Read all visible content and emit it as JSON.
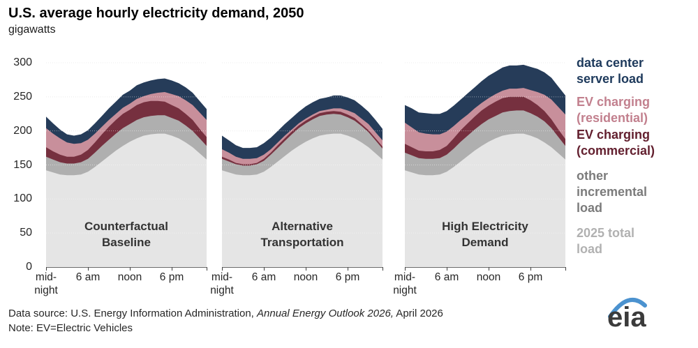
{
  "title": "U.S. average hourly electricity demand, 2050",
  "subtitle": "gigawatts",
  "footer": {
    "source_prefix": "Data source: U.S. Energy Information Administration, ",
    "source_italic": "Annual Energy Outlook 2026,",
    "source_suffix": " April 2026",
    "note": "Note: EV=Electric Vehicles"
  },
  "logo": {
    "text": "eia",
    "swoosh_color": "#4b92cf"
  },
  "chart_data": {
    "type": "area",
    "stacked": true,
    "title": "U.S. average hourly electricity demand, 2050",
    "ylabel": "gigawatts",
    "ylim": [
      0,
      300
    ],
    "y_ticks": [
      0,
      50,
      100,
      150,
      200,
      250,
      300
    ],
    "grid": "dotted horizontal",
    "legend_position": "right",
    "hours": [
      0,
      1,
      2,
      3,
      4,
      5,
      6,
      7,
      8,
      9,
      10,
      11,
      12,
      13,
      14,
      15,
      16,
      17,
      18,
      19,
      20,
      21,
      22,
      23
    ],
    "x_tick_labels": [
      {
        "hour": 0,
        "label": "mid-\nnight"
      },
      {
        "hour": 6,
        "label": "6 am"
      },
      {
        "hour": 12,
        "label": "noon"
      },
      {
        "hour": 18,
        "label": "6 pm"
      }
    ],
    "series_order": [
      "total_2025",
      "other_incremental",
      "ev_commercial",
      "ev_residential",
      "data_center"
    ],
    "colors": {
      "total_2025": "#e5e5e5",
      "other_incremental": "#afafaf",
      "ev_commercial": "#76303f",
      "ev_residential": "#c88f9b",
      "data_center": "#263c59"
    },
    "legend": [
      {
        "series": "data_center",
        "label": "data center\nserver load",
        "color": "#1e3a5c"
      },
      {
        "series": "ev_residential",
        "label": "EV charging\n(residential)",
        "color": "#c2808e"
      },
      {
        "series": "ev_commercial",
        "label": "EV charging\n(commercial)",
        "color": "#63202f"
      },
      {
        "series": "other_incremental",
        "label": "other\nincremental\nload",
        "color": "#7b7b7b"
      },
      {
        "series": "total_2025",
        "label": "2025 total\nload",
        "color": "#b1b1b1"
      }
    ],
    "panels": [
      {
        "label": "Counterfactual\nBaseline",
        "series": {
          "total_2025": [
            142,
            139,
            136,
            135,
            135,
            136,
            140,
            147,
            155,
            163,
            171,
            178,
            184,
            189,
            193,
            195,
            196,
            196,
            193,
            189,
            183,
            176,
            167,
            158
          ],
          "other_incremental": [
            20,
            19,
            18,
            17,
            17,
            18,
            19,
            21,
            23,
            24,
            25,
            26,
            26,
            27,
            27,
            27,
            27,
            27,
            26,
            26,
            25,
            24,
            22,
            20
          ],
          "ev_commercial": [
            14,
            12,
            11,
            10,
            10,
            11,
            13,
            15,
            17,
            19,
            20,
            21,
            21,
            22,
            22,
            22,
            21,
            20,
            19,
            18,
            17,
            16,
            14,
            13
          ],
          "ev_residential": [
            28,
            26,
            24,
            21,
            19,
            17,
            15,
            13,
            11,
            10,
            9,
            9,
            9,
            9,
            9,
            10,
            12,
            14,
            16,
            18,
            20,
            22,
            24,
            25
          ],
          "data_center": [
            17,
            15,
            13,
            12,
            12,
            13,
            14,
            15,
            16,
            17,
            18,
            19,
            19,
            20,
            20,
            20,
            20,
            20,
            20,
            19,
            19,
            18,
            17,
            16
          ]
        }
      },
      {
        "label": "Alternative\nTransportation",
        "series": {
          "total_2025": [
            142,
            139,
            136,
            135,
            135,
            136,
            140,
            147,
            155,
            163,
            171,
            178,
            184,
            189,
            193,
            195,
            196,
            196,
            193,
            189,
            183,
            176,
            167,
            158
          ],
          "other_incremental": [
            17,
            16,
            15,
            14,
            14,
            15,
            16,
            18,
            20,
            22,
            24,
            26,
            27,
            28,
            29,
            29,
            29,
            28,
            27,
            26,
            24,
            22,
            19,
            16
          ],
          "ev_commercial": [
            3,
            3,
            2,
            2,
            2,
            2,
            3,
            3,
            4,
            4,
            4,
            4,
            4,
            4,
            4,
            4,
            4,
            4,
            4,
            4,
            3,
            3,
            3,
            3
          ],
          "ev_residential": [
            11,
            10,
            9,
            8,
            8,
            7,
            6,
            5,
            4,
            4,
            3,
            3,
            3,
            3,
            3,
            3,
            4,
            5,
            6,
            7,
            8,
            9,
            9,
            9
          ],
          "data_center": [
            20,
            18,
            17,
            16,
            16,
            16,
            17,
            17,
            17,
            17,
            17,
            17,
            18,
            18,
            18,
            18,
            19,
            19,
            19,
            19,
            19,
            18,
            18,
            17
          ]
        }
      },
      {
        "label": "High Electricity\nDemand",
        "series": {
          "total_2025": [
            142,
            139,
            136,
            135,
            135,
            136,
            140,
            147,
            155,
            163,
            171,
            178,
            184,
            189,
            193,
            195,
            196,
            196,
            193,
            189,
            183,
            176,
            167,
            158
          ],
          "other_incremental": [
            26,
            25,
            24,
            24,
            24,
            24,
            25,
            27,
            29,
            30,
            31,
            32,
            33,
            33,
            34,
            34,
            34,
            34,
            33,
            32,
            31,
            28,
            24,
            20
          ],
          "ev_commercial": [
            13,
            12,
            11,
            11,
            11,
            12,
            13,
            15,
            17,
            18,
            19,
            20,
            20,
            21,
            21,
            21,
            20,
            20,
            19,
            17,
            15,
            13,
            11,
            10
          ],
          "ev_residential": [
            31,
            29,
            27,
            26,
            25,
            23,
            21,
            18,
            15,
            13,
            12,
            11,
            11,
            11,
            11,
            12,
            12,
            13,
            15,
            19,
            24,
            29,
            33,
            36
          ],
          "data_center": [
            26,
            28,
            29,
            30,
            30,
            30,
            30,
            30,
            30,
            31,
            31,
            32,
            33,
            33,
            34,
            34,
            34,
            34,
            34,
            34,
            33,
            32,
            30,
            28
          ]
        }
      }
    ]
  }
}
